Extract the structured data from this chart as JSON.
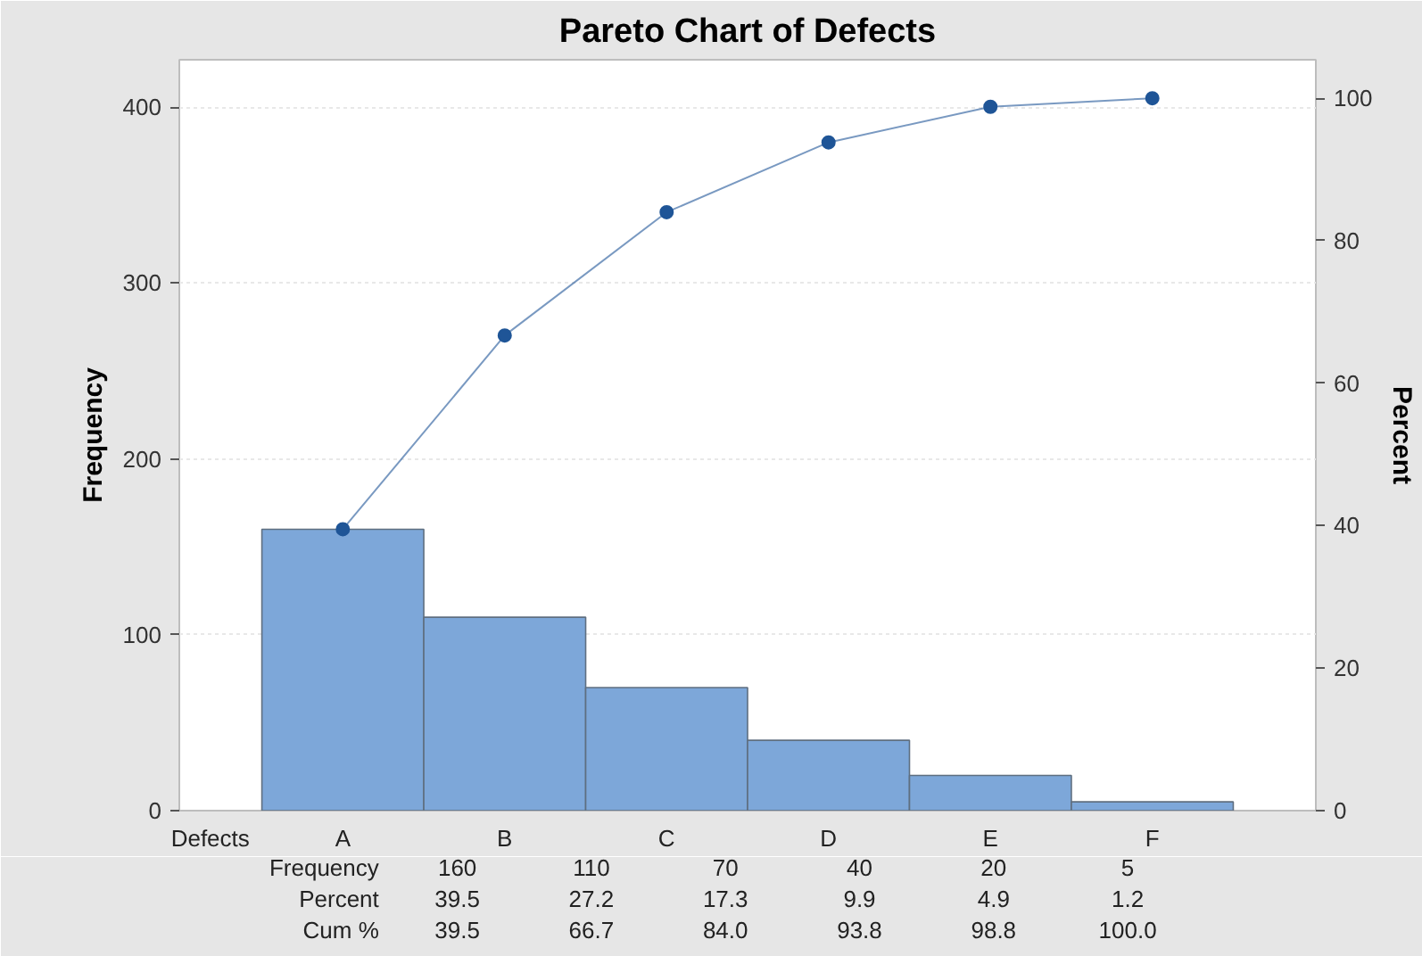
{
  "chart_data": {
    "type": "bar",
    "title": "Pareto Chart of Defects",
    "xlabel": "Defects",
    "ylabel": "Frequency",
    "y2label": "Percent",
    "categories": [
      "A",
      "B",
      "C",
      "D",
      "E",
      "F"
    ],
    "series": [
      {
        "color": "#7da7d9",
        "values": [
          160,
          110,
          70,
          40,
          20,
          5
        ]
      },
      {
        "type": "line",
        "axis": "y2",
        "color": "#1f5597",
        "marker": "circle",
        "values": [
          39.5,
          66.7,
          84.0,
          93.8,
          98.8,
          100.0
        ]
      }
    ],
    "annotations": [
      "Frequency",
      "160",
      "110",
      "70",
      "40",
      "20",
      "5",
      "Percent",
      "39.5",
      "27.2",
      "17.3",
      "9.9",
      "4.9",
      "1.2",
      "Cum %",
      "39.5",
      "66.7",
      "84.0",
      "93.8",
      "98.8",
      "100.0"
    ],
    "ylim": [
      0,
      427
    ],
    "yticks": [
      0,
      100,
      200,
      300,
      400
    ],
    "y2lim": [
      0,
      105.4
    ],
    "y2ticks": [
      0,
      20,
      40,
      60,
      80,
      100
    ],
    "grid": "y"
  }
}
